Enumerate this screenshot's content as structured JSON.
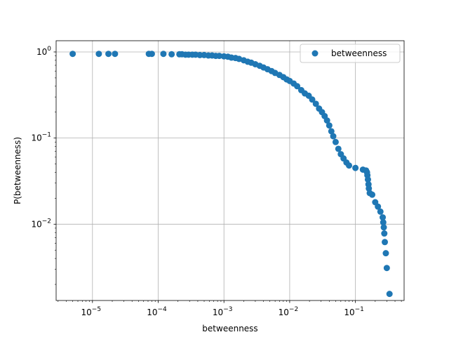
{
  "chart_data": {
    "type": "scatter",
    "xscale": "log",
    "yscale": "log",
    "xlabel": "betweenness",
    "ylabel": "P(betweenness)",
    "xlim": [
      2.8e-06,
      0.55
    ],
    "ylim": [
      0.0013,
      1.35
    ],
    "grid": true,
    "legend_position": "top-right",
    "x_ticks": [
      {
        "base": "10",
        "exp": "−5",
        "value": 1e-05
      },
      {
        "base": "10",
        "exp": "−4",
        "value": 0.0001
      },
      {
        "base": "10",
        "exp": "−3",
        "value": 0.001
      },
      {
        "base": "10",
        "exp": "−2",
        "value": 0.01
      },
      {
        "base": "10",
        "exp": "−1",
        "value": 0.1
      }
    ],
    "y_ticks": [
      {
        "base": "10",
        "exp": "−2",
        "value": 0.01
      },
      {
        "base": "10",
        "exp": "−1",
        "value": 0.1
      },
      {
        "base": "10",
        "exp": "0",
        "value": 1
      }
    ],
    "color": "#1f77b4",
    "series": [
      {
        "name": "betweenness",
        "points": [
          [
            5e-06,
            0.95
          ],
          [
            1.25e-05,
            0.95
          ],
          [
            1.75e-05,
            0.95
          ],
          [
            2.2e-05,
            0.95
          ],
          [
            7.2e-05,
            0.95
          ],
          [
            8e-05,
            0.95
          ],
          [
            0.00012,
            0.95
          ],
          [
            0.00016,
            0.94
          ],
          [
            0.00021,
            0.94
          ],
          [
            0.00023,
            0.94
          ],
          [
            0.00026,
            0.93
          ],
          [
            0.00029,
            0.93
          ],
          [
            0.00033,
            0.93
          ],
          [
            0.00037,
            0.93
          ],
          [
            0.00043,
            0.92
          ],
          [
            0.0005,
            0.92
          ],
          [
            0.00058,
            0.91
          ],
          [
            0.00066,
            0.91
          ],
          [
            0.00075,
            0.9
          ],
          [
            0.00085,
            0.9
          ],
          [
            0.001,
            0.89
          ],
          [
            0.00115,
            0.88
          ],
          [
            0.0013,
            0.86
          ],
          [
            0.0015,
            0.85
          ],
          [
            0.0017,
            0.83
          ],
          [
            0.002,
            0.8
          ],
          [
            0.0023,
            0.77
          ],
          [
            0.0026,
            0.75
          ],
          [
            0.003,
            0.72
          ],
          [
            0.0035,
            0.69
          ],
          [
            0.004,
            0.66
          ],
          [
            0.0046,
            0.63
          ],
          [
            0.0053,
            0.6
          ],
          [
            0.006,
            0.57
          ],
          [
            0.007,
            0.54
          ],
          [
            0.008,
            0.51
          ],
          [
            0.009,
            0.48
          ],
          [
            0.01,
            0.46
          ],
          [
            0.0115,
            0.43
          ],
          [
            0.013,
            0.4
          ],
          [
            0.015,
            0.36
          ],
          [
            0.017,
            0.33
          ],
          [
            0.0195,
            0.31
          ],
          [
            0.022,
            0.28
          ],
          [
            0.025,
            0.25
          ],
          [
            0.028,
            0.22
          ],
          [
            0.031,
            0.2
          ],
          [
            0.034,
            0.18
          ],
          [
            0.037,
            0.16
          ],
          [
            0.04,
            0.14
          ],
          [
            0.043,
            0.12
          ],
          [
            0.046,
            0.105
          ],
          [
            0.05,
            0.09
          ],
          [
            0.055,
            0.075
          ],
          [
            0.06,
            0.065
          ],
          [
            0.066,
            0.058
          ],
          [
            0.073,
            0.052
          ],
          [
            0.08,
            0.048
          ],
          [
            0.1,
            0.045
          ],
          [
            0.13,
            0.043
          ],
          [
            0.145,
            0.042
          ],
          [
            0.15,
            0.04
          ],
          [
            0.152,
            0.037
          ],
          [
            0.155,
            0.033
          ],
          [
            0.158,
            0.029
          ],
          [
            0.16,
            0.026
          ],
          [
            0.165,
            0.023
          ],
          [
            0.18,
            0.022
          ],
          [
            0.2,
            0.018
          ],
          [
            0.22,
            0.016
          ],
          [
            0.24,
            0.014
          ],
          [
            0.26,
            0.012
          ],
          [
            0.265,
            0.0105
          ],
          [
            0.27,
            0.0092
          ],
          [
            0.275,
            0.0078
          ],
          [
            0.28,
            0.0062
          ],
          [
            0.29,
            0.0046
          ],
          [
            0.3,
            0.0031
          ],
          [
            0.33,
            0.00155
          ]
        ]
      }
    ]
  }
}
